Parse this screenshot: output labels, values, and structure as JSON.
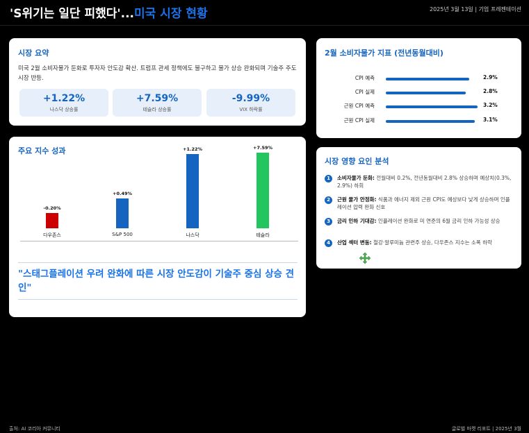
{
  "header": {
    "title_main": "'S위기는 일단 피했다'...",
    "title_accent": "미국 시장 현황",
    "date": "2025년 3월 13일 | 기업 프레젠테이션"
  },
  "summary": {
    "title": "시장 요약",
    "text": "미국 2월 소비자물가 둔화로 투자자 안도감 확산. 트럼프 관세 정책에도 불구하고 물가 상승 완화되며 기술주 주도 시장 반등.",
    "stats": [
      {
        "value": "+1.22%",
        "label": "나스닥 상승률"
      },
      {
        "value": "+7.59%",
        "label": "테슬라 상승률"
      },
      {
        "value": "-9.99%",
        "label": "VIX 하락률"
      }
    ]
  },
  "cpi": {
    "title": "2월 소비자물가 지표 (전년동월대비)",
    "rows": [
      {
        "label": "CPI 예측",
        "value": "2.9%",
        "pct": 2.9
      },
      {
        "label": "CPI 실제",
        "value": "2.8%",
        "pct": 2.8
      },
      {
        "label": "근원 CPI 예측",
        "value": "3.2%",
        "pct": 3.2
      },
      {
        "label": "근원 CPI 실제",
        "value": "3.1%",
        "pct": 3.1
      }
    ]
  },
  "index": {
    "title": "주요 지수 성과",
    "quote": "\"스태그플레이션 우려 완화에 따른 시장 안도감이 기술주 중심 상승 견인\""
  },
  "chart_data": {
    "type": "bar",
    "categories": [
      "다우존스",
      "S&P 500",
      "나스닥",
      "테슬라"
    ],
    "values": [
      -0.2,
      0.49,
      1.22,
      7.59
    ],
    "labels": [
      "-0.20%",
      "+0.49%",
      "+1.22%",
      "+7.59%"
    ],
    "colors": [
      "#cc0000",
      "#1565c0",
      "#1565c0",
      "#22c55e"
    ],
    "title": "주요 지수 성과"
  },
  "factors": {
    "title": "시장 영향 요인 분석",
    "items": [
      {
        "num": "1",
        "head": "소비자물가 둔화:",
        "text": " 전월대비 0.2%, 전년동월대비 2.8% 상승하며 예상치(0.3%, 2.9%) 하회"
      },
      {
        "num": "2",
        "head": "근원 물가 안정화:",
        "text": " 식품과 에너지 제외 근원 CPI도 예상보다 낮게 상승하며 인플레이션 압력 완화 신호"
      },
      {
        "num": "3",
        "head": "금리 인하 기대감:",
        "text": " 인플레이션 완화로 미 연준의 6월 금리 인하 가능성 상승"
      },
      {
        "num": "4",
        "head": "산업 섹터 변동:",
        "text": " 철강·알루미늄 관련주 상승, 다우존스 지수는 소폭 하락"
      }
    ]
  },
  "footer": {
    "source": "출처: AI 코리아 커뮤니티",
    "report": "글로벌 마켓 리포트 | 2025년 3월"
  }
}
